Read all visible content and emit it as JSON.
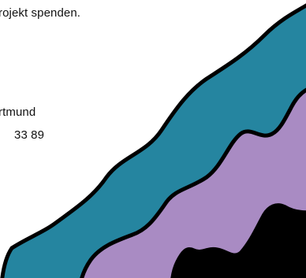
{
  "text": {
    "line1": "rojekt spenden.",
    "line2": "rtmund",
    "line3": "33 89"
  },
  "colors": {
    "background": "#ffffff",
    "teal": "#2585a0",
    "lavender": "#a98bc3",
    "black": "#000000",
    "outline": "#000000",
    "text": "#111111"
  },
  "icons": {
    "decoration": "wavy-stripes-graphic"
  }
}
